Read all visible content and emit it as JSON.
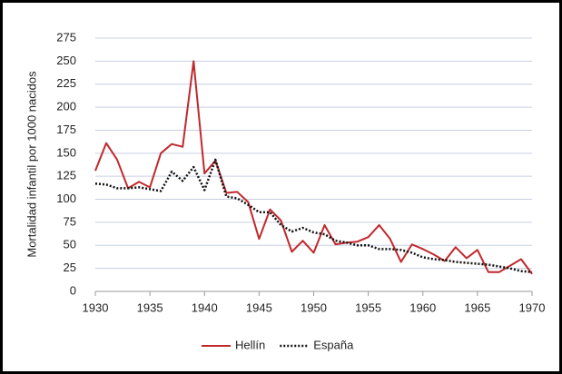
{
  "chart_data": {
    "type": "line",
    "y_label": "Mortalidad infantil por 1000 nacidos",
    "x": [
      1930,
      1931,
      1932,
      1933,
      1934,
      1935,
      1936,
      1937,
      1938,
      1939,
      1940,
      1941,
      1942,
      1943,
      1944,
      1945,
      1946,
      1947,
      1948,
      1949,
      1950,
      1951,
      1952,
      1953,
      1954,
      1955,
      1956,
      1957,
      1958,
      1959,
      1960,
      1961,
      1962,
      1963,
      1964,
      1965,
      1966,
      1967,
      1968,
      1969,
      1970
    ],
    "series": [
      {
        "name": "Hellín",
        "color": "#c0282d",
        "style": "solid",
        "values": [
          131,
          161,
          143,
          112,
          119,
          113,
          150,
          160,
          157,
          250,
          128,
          142,
          107,
          108,
          97,
          57,
          89,
          77,
          43,
          55,
          42,
          72,
          51,
          53,
          54,
          59,
          72,
          57,
          32,
          51,
          46,
          40,
          33,
          48,
          36,
          45,
          21,
          21,
          28,
          35,
          19
        ]
      },
      {
        "name": "España",
        "color": "#111111",
        "style": "dotted",
        "values": [
          117,
          116,
          112,
          112,
          113,
          111,
          109,
          130,
          120,
          135,
          110,
          143,
          103,
          101,
          94,
          86,
          86,
          72,
          65,
          69,
          64,
          62,
          55,
          53,
          50,
          50,
          46,
          46,
          45,
          42,
          37,
          35,
          34,
          32,
          31,
          30,
          29,
          27,
          25,
          22,
          21
        ]
      }
    ],
    "xlim": [
      1930,
      1970
    ],
    "xticks": [
      1930,
      1935,
      1940,
      1945,
      1950,
      1955,
      1960,
      1965,
      1970
    ],
    "ylim": [
      0,
      275
    ],
    "yticks": [
      0,
      25,
      50,
      75,
      100,
      125,
      150,
      175,
      200,
      225,
      250,
      275
    ],
    "grid": true,
    "legend": "bottom"
  }
}
